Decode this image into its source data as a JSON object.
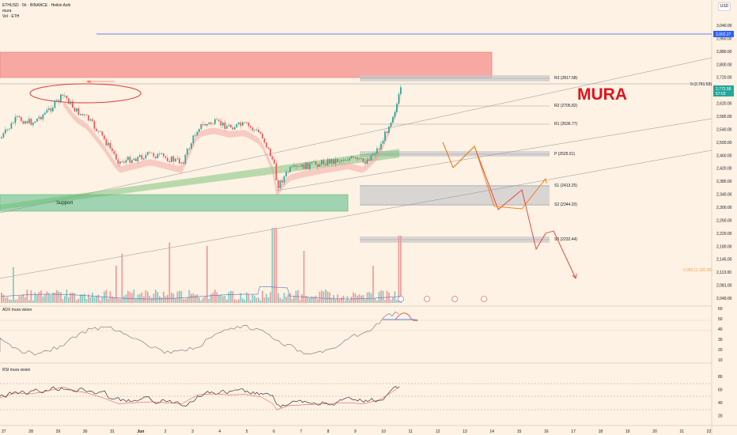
{
  "legend": {
    "symbol": "ETHUSD · 5h · BINANCE · Heikin Ashi",
    "line2": "mura",
    "line3": "Vol · ETH"
  },
  "currency": "USD",
  "brand": "MURA",
  "support_label": "Support",
  "price_axis": [
    "3,040.00",
    "2,960.00",
    "2,880.00",
    "2,800.00",
    "2,720.00",
    "2,670.00",
    "2,620.00",
    "2,580.00",
    "2,540.00",
    "2,500.00",
    "2,460.00",
    "2,420.00",
    "2,380.00",
    "2,340.00",
    "2,300.00",
    "2,260.00",
    "2,220.00",
    "2,180.00",
    "2,145.00",
    "2,113.00",
    "2,081.00",
    "2,049.00"
  ],
  "price_tags": {
    "top": "3,002.27",
    "last": "2,772.58",
    "last_countdown": "57:03"
  },
  "pivots": [
    {
      "label": "R3 (2817.58)"
    },
    {
      "label": "R2 (2705.82)"
    },
    {
      "label": "R1 (2636.77)"
    },
    {
      "label": "P (2525.01)"
    },
    {
      "label": "S1 (2413.25)"
    },
    {
      "label": "S2 (2344.20)"
    },
    {
      "label": "S3 (2232.44)"
    }
  ],
  "fib_labels": {
    "top": "0 (2,791.53)",
    "mid": "0.382 (2,136.28)"
  },
  "adx": {
    "title": "ADX mura vision",
    "axis": [
      "60",
      "50",
      "40",
      "30",
      "20",
      "10"
    ]
  },
  "rsi": {
    "title": "RSI mura vision",
    "axis": [
      "80",
      "60",
      "40",
      "20"
    ]
  },
  "time_axis": [
    "27",
    "28",
    "29",
    "30",
    "31",
    "Jun",
    "2",
    "3",
    "4",
    "5",
    "6",
    "7",
    "8",
    "9",
    "10",
    "11",
    "12",
    "13",
    "14",
    "15",
    "16",
    "17",
    "18",
    "19",
    "20",
    "21",
    "22"
  ],
  "colors": {
    "background": "#fdf2e3",
    "bull": "#26a69a",
    "bear": "#ef5350",
    "resistance_zone": "#f7a8a3",
    "support_zone": "#9fd3b1",
    "projection": "#f57c00",
    "projection_bear": "#e53935",
    "line_blue": "#2962ff"
  },
  "chart_data": {
    "type": "candlestick",
    "y_range": [
      2049,
      3040
    ],
    "current_price": 2772.58,
    "pivot_levels": {
      "R3": 2817.58,
      "R2": 2705.82,
      "R1": 2636.77,
      "P": 2525.01,
      "S1": 2413.25,
      "S2": 2344.2,
      "S3": 2232.44
    },
    "fib": {
      "0": 2791.53,
      "0.382": 2136.28
    }
  }
}
